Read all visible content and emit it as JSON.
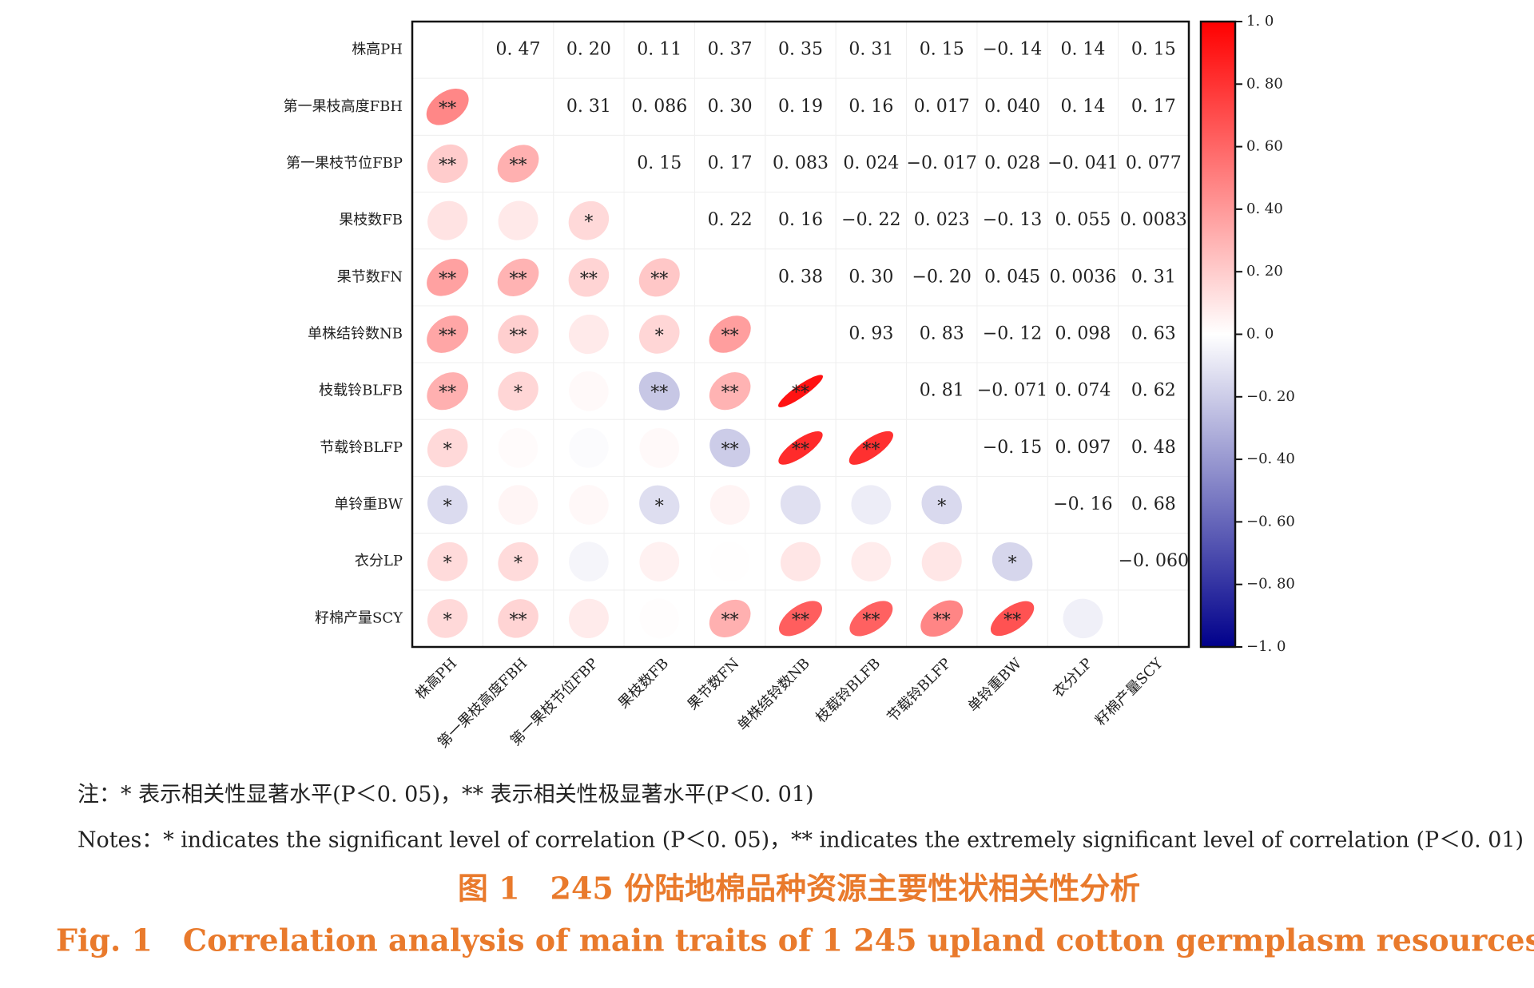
{
  "chart_data": {
    "type": "correlation_matrix",
    "variables": [
      "株高PH",
      "第一果枝高度FBH",
      "第一果枝节位FBP",
      "果枝数FB",
      "果节数FN",
      "单株结铃数NB",
      "枝载铃BLFB",
      "节载铃BLFP",
      "单铃重BW",
      "衣分LP",
      "籽棉产量SCY"
    ],
    "values": [
      [
        null,
        0.47,
        0.2,
        0.11,
        0.37,
        0.35,
        0.31,
        0.15,
        -0.14,
        0.14,
        0.15
      ],
      [
        null,
        null,
        0.31,
        0.086,
        0.3,
        0.19,
        0.16,
        0.017,
        0.04,
        0.14,
        0.17
      ],
      [
        null,
        null,
        null,
        0.15,
        0.17,
        0.083,
        0.024,
        -0.017,
        0.028,
        -0.041,
        0.077
      ],
      [
        null,
        null,
        null,
        null,
        0.22,
        0.16,
        -0.22,
        0.023,
        -0.13,
        0.055,
        0.0083
      ],
      [
        null,
        null,
        null,
        null,
        null,
        0.38,
        0.3,
        -0.2,
        0.045,
        0.0036,
        0.31
      ],
      [
        null,
        null,
        null,
        null,
        null,
        null,
        0.93,
        0.83,
        -0.12,
        0.098,
        0.63
      ],
      [
        null,
        null,
        null,
        null,
        null,
        null,
        null,
        0.81,
        -0.071,
        0.074,
        0.62
      ],
      [
        null,
        null,
        null,
        null,
        null,
        null,
        null,
        null,
        -0.15,
        0.097,
        0.48
      ],
      [
        null,
        null,
        null,
        null,
        null,
        null,
        null,
        null,
        null,
        -0.16,
        0.68
      ],
      [
        null,
        null,
        null,
        null,
        null,
        null,
        null,
        null,
        null,
        null,
        -0.06
      ],
      [
        null,
        null,
        null,
        null,
        null,
        null,
        null,
        null,
        null,
        null,
        null
      ]
    ],
    "value_labels": [
      [
        null,
        "0. 47",
        "0. 20",
        "0. 11",
        "0. 37",
        "0. 35",
        "0. 31",
        "0. 15",
        "−0. 14",
        "0. 14",
        "0. 15"
      ],
      [
        null,
        null,
        "0. 31",
        "0. 086",
        "0. 30",
        "0. 19",
        "0. 16",
        "0. 017",
        "0. 040",
        "0. 14",
        "0. 17"
      ],
      [
        null,
        null,
        null,
        "0. 15",
        "0. 17",
        "0. 083",
        "0. 024",
        "−0. 017",
        "0. 028",
        "−0. 041",
        "0. 077"
      ],
      [
        null,
        null,
        null,
        null,
        "0. 22",
        "0. 16",
        "−0. 22",
        "0. 023",
        "−0. 13",
        "0. 055",
        "0. 0083"
      ],
      [
        null,
        null,
        null,
        null,
        null,
        "0. 38",
        "0. 30",
        "−0. 20",
        "0. 045",
        "0. 0036",
        "0. 31"
      ],
      [
        null,
        null,
        null,
        null,
        null,
        null,
        "0. 93",
        "0. 83",
        "−0. 12",
        "0. 098",
        "0. 63"
      ],
      [
        null,
        null,
        null,
        null,
        null,
        null,
        null,
        "0. 81",
        "−0. 071",
        "0. 074",
        "0. 62"
      ],
      [
        null,
        null,
        null,
        null,
        null,
        null,
        null,
        null,
        "−0. 15",
        "0. 097",
        "0. 48"
      ],
      [
        null,
        null,
        null,
        null,
        null,
        null,
        null,
        null,
        null,
        "−0. 16",
        "0. 68"
      ],
      [
        null,
        null,
        null,
        null,
        null,
        null,
        null,
        null,
        null,
        null,
        "−0. 060"
      ],
      [
        null,
        null,
        null,
        null,
        null,
        null,
        null,
        null,
        null,
        null,
        null
      ]
    ],
    "significance": [
      [
        null,
        null,
        null,
        null,
        null,
        null,
        null,
        null,
        null,
        null,
        null
      ],
      [
        "**",
        null,
        null,
        null,
        null,
        null,
        null,
        null,
        null,
        null,
        null
      ],
      [
        "**",
        "**",
        null,
        null,
        null,
        null,
        null,
        null,
        null,
        null,
        null
      ],
      [
        null,
        null,
        "*",
        null,
        null,
        null,
        null,
        null,
        null,
        null,
        null
      ],
      [
        "**",
        "**",
        "**",
        "**",
        null,
        null,
        null,
        null,
        null,
        null,
        null
      ],
      [
        "**",
        "**",
        null,
        "*",
        "**",
        null,
        null,
        null,
        null,
        null,
        null
      ],
      [
        "**",
        "*",
        null,
        "**",
        "**",
        "**",
        null,
        null,
        null,
        null,
        null
      ],
      [
        "*",
        null,
        null,
        null,
        "**",
        "**",
        "**",
        null,
        null,
        null,
        null
      ],
      [
        "*",
        null,
        null,
        "*",
        null,
        null,
        null,
        "*",
        null,
        null,
        null
      ],
      [
        "*",
        "*",
        null,
        null,
        null,
        null,
        null,
        null,
        "*",
        null,
        null
      ],
      [
        "*",
        "**",
        null,
        null,
        "**",
        "**",
        "**",
        "**",
        "**",
        null,
        null
      ]
    ],
    "colormap": [
      "#00008b",
      "#ffffff",
      "#ff0000"
    ],
    "clim": [
      -1,
      1
    ],
    "cticks": [
      {
        "value": 1,
        "label": "1. 0"
      },
      {
        "value": 0.8,
        "label": "0. 80"
      },
      {
        "value": 0.6,
        "label": "0. 60"
      },
      {
        "value": 0.4,
        "label": "0. 40"
      },
      {
        "value": 0.2,
        "label": "0. 20"
      },
      {
        "value": 0,
        "label": "0. 0"
      },
      {
        "value": -0.2,
        "label": "−0. 20"
      },
      {
        "value": -0.4,
        "label": "−0. 40"
      },
      {
        "value": -0.6,
        "label": "−0. 60"
      },
      {
        "value": -0.8,
        "label": "−0. 80"
      },
      {
        "value": -1,
        "label": "−1. 0"
      }
    ],
    "notes": [
      "注：* 表示相关性显著水平(P＜0. 05)，** 表示相关性极显著水平(P＜0. 01)",
      "Notes：* indicates the significant level of correlation (P＜0. 05)，** indicates the extremely significant level of correlation (P＜0. 01)"
    ],
    "caption_cn": "图 1　245 份陆地棉品种资源主要性状相关性分析",
    "caption_en": "Fig. 1　Correlation analysis of main traits of 1 245 upland cotton germplasm resources"
  }
}
